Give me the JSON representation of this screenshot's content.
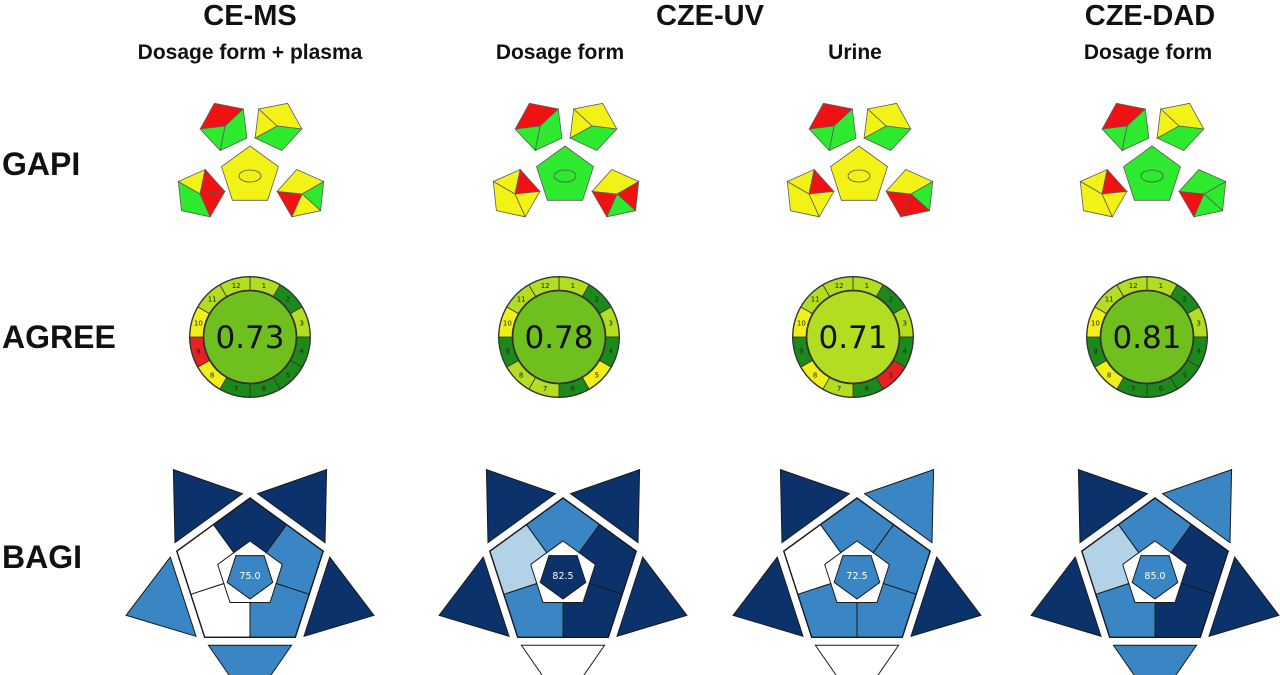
{
  "headers": {
    "methods": [
      "CE-MS",
      "CZE-UV",
      "CZE-DAD"
    ],
    "subtitles": [
      "Dosage form + plasma",
      "Dosage form",
      "Urine",
      "Dosage form"
    ]
  },
  "row_labels": [
    "GAPI",
    "AGREE",
    "BAGI"
  ],
  "colors": {
    "green": "#2eea2e",
    "yellow": "#f2f217",
    "red": "#f01212",
    "agree_dark": "#1b8a1b",
    "agree_mid": "#6fbf1e",
    "agree_light": "#b3dd20",
    "agree_yellow": "#f0f018",
    "agree_red": "#e52222",
    "bagi_dark": "#0b326b",
    "bagi_mid": "#3a86c4",
    "bagi_light": "#b2d2e8",
    "bagi_white": "#ffffff"
  },
  "gapi": [
    {
      "center": "yellow",
      "p1": [
        "red",
        "green",
        "green"
      ],
      "p2": [
        "yellow",
        "green",
        "yellow"
      ],
      "p3": [
        "yellow",
        "red",
        "red",
        "green"
      ],
      "p4": [
        "green",
        "yellow",
        "red",
        "yellow"
      ]
    },
    {
      "center": "green",
      "p1": [
        "red",
        "green",
        "green"
      ],
      "p2": [
        "yellow",
        "green",
        "yellow"
      ],
      "p3": [
        "yellow",
        "red",
        "yellow",
        "yellow"
      ],
      "p4": [
        "red",
        "green",
        "red",
        "yellow"
      ]
    },
    {
      "center": "yellow",
      "p1": [
        "red",
        "green",
        "green"
      ],
      "p2": [
        "yellow",
        "green",
        "yellow"
      ],
      "p3": [
        "yellow",
        "red",
        "yellow",
        "yellow"
      ],
      "p4": [
        "green",
        "red",
        "red",
        "yellow"
      ]
    },
    {
      "center": "green",
      "p1": [
        "red",
        "green",
        "green"
      ],
      "p2": [
        "yellow",
        "green",
        "yellow"
      ],
      "p3": [
        "yellow",
        "red",
        "yellow",
        "yellow"
      ],
      "p4": [
        "green",
        "green",
        "red",
        "green"
      ]
    }
  ],
  "agree": [
    {
      "score": "0.73",
      "center": "agree_mid",
      "segments": [
        "agree_light",
        "agree_dark",
        "agree_light",
        "agree_dark",
        "agree_dark",
        "agree_dark",
        "agree_dark",
        "agree_yellow",
        "agree_red",
        "agree_yellow",
        "agree_light",
        "agree_light"
      ]
    },
    {
      "score": "0.78",
      "center": "agree_mid",
      "segments": [
        "agree_light",
        "agree_dark",
        "agree_light",
        "agree_dark",
        "agree_yellow",
        "agree_dark",
        "agree_light",
        "agree_light",
        "agree_dark",
        "agree_yellow",
        "agree_light",
        "agree_light"
      ]
    },
    {
      "score": "0.71",
      "center": "agree_light",
      "segments": [
        "agree_light",
        "agree_dark",
        "agree_light",
        "agree_dark",
        "agree_red",
        "agree_dark",
        "agree_light",
        "agree_yellow",
        "agree_dark",
        "agree_yellow",
        "agree_light",
        "agree_light"
      ]
    },
    {
      "score": "0.81",
      "center": "agree_mid",
      "segments": [
        "agree_light",
        "agree_dark",
        "agree_light",
        "agree_dark",
        "agree_dark",
        "agree_dark",
        "agree_dark",
        "agree_yellow",
        "agree_dark",
        "agree_yellow",
        "agree_light",
        "agree_light"
      ]
    }
  ],
  "bagi": [
    {
      "score": "75.0",
      "tris": [
        "bagi_dark",
        "bagi_dark",
        "bagi_mid",
        "bagi_mid",
        "bagi_dark"
      ],
      "inner": [
        "bagi_dark",
        "bagi_mid",
        "bagi_mid",
        "bagi_white",
        "bagi_white"
      ],
      "center": "bagi_mid"
    },
    {
      "score": "82.5",
      "tris": [
        "bagi_dark",
        "bagi_dark",
        "bagi_white",
        "bagi_dark",
        "bagi_dark"
      ],
      "inner": [
        "bagi_mid",
        "bagi_dark",
        "bagi_dark",
        "bagi_mid",
        "bagi_light"
      ],
      "center": "bagi_dark"
    },
    {
      "score": "72.5",
      "tris": [
        "bagi_mid",
        "bagi_dark",
        "bagi_white",
        "bagi_dark",
        "bagi_dark"
      ],
      "inner": [
        "bagi_mid",
        "bagi_mid",
        "bagi_mid",
        "bagi_mid",
        "bagi_white"
      ],
      "center": "bagi_mid"
    },
    {
      "score": "85.0",
      "tris": [
        "bagi_mid",
        "bagi_dark",
        "bagi_mid",
        "bagi_dark",
        "bagi_dark"
      ],
      "inner": [
        "bagi_mid",
        "bagi_dark",
        "bagi_dark",
        "bagi_mid",
        "bagi_light"
      ],
      "center": "bagi_mid"
    }
  ]
}
